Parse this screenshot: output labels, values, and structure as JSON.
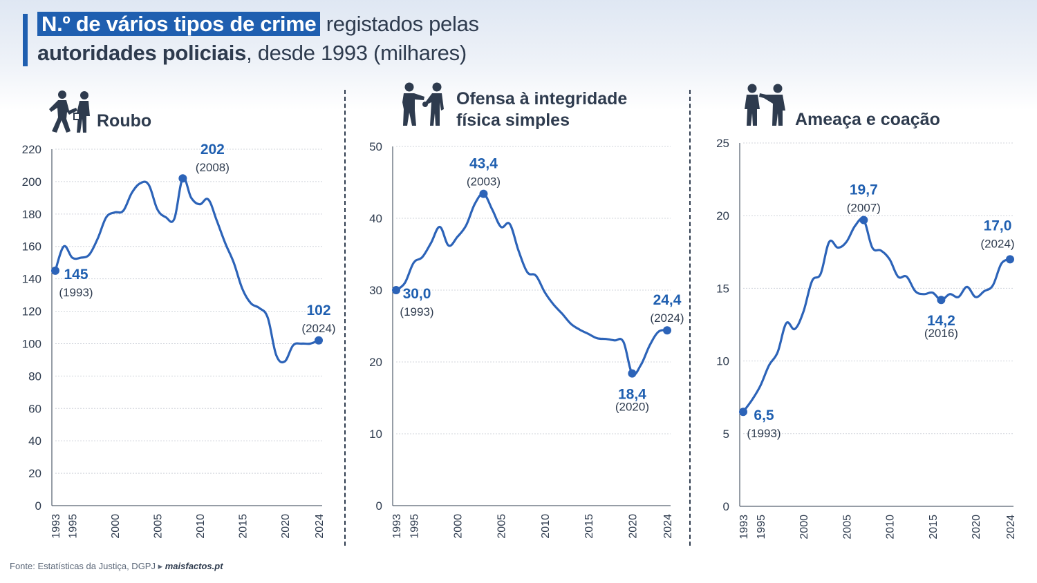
{
  "title": {
    "highlight": "N.º de vários tipos de crime",
    "part2": " registados pelas",
    "part3_bold": "autoridades policiais",
    "part4": ", desde 1993 (milhares)"
  },
  "source": {
    "text": "Fonte: Estatísticas da Justiça, DGPJ ▸ ",
    "site": "maisfactos.pt"
  },
  "colors": {
    "line": "#2c63b8",
    "label": "#1f5fb0",
    "grid": "#d0d4db",
    "axis": "#2e3b4e"
  },
  "chart_data": [
    {
      "type": "line",
      "title": "Roubo",
      "icon": "robbery-icon",
      "ylim": [
        0,
        220
      ],
      "yticks": [
        0,
        20,
        40,
        60,
        80,
        100,
        120,
        140,
        160,
        180,
        200,
        220
      ],
      "xlim": [
        1993,
        2024
      ],
      "xticks": [
        1993,
        1995,
        2000,
        2005,
        2010,
        2015,
        2020,
        2024
      ],
      "x": [
        1993,
        1994,
        1995,
        1996,
        1997,
        1998,
        1999,
        2000,
        2001,
        2002,
        2003,
        2004,
        2005,
        2006,
        2007,
        2008,
        2009,
        2010,
        2011,
        2012,
        2013,
        2014,
        2015,
        2016,
        2017,
        2018,
        2019,
        2020,
        2021,
        2022,
        2023,
        2024
      ],
      "values": [
        145,
        160,
        153,
        153,
        155,
        165,
        178,
        181,
        182,
        193,
        199,
        198,
        183,
        178,
        177,
        202,
        190,
        186,
        189,
        176,
        162,
        150,
        134,
        125,
        122,
        116,
        93,
        89,
        99,
        100,
        100,
        102
      ],
      "annotations": [
        {
          "x": 1993,
          "y": 145,
          "value": "145",
          "year": "(1993)",
          "pos": "below-right"
        },
        {
          "x": 2008,
          "y": 202,
          "value": "202",
          "year": "(2008)",
          "pos": "above-right"
        },
        {
          "x": 2024,
          "y": 102,
          "value": "102",
          "year": "(2024)",
          "pos": "above"
        }
      ]
    },
    {
      "type": "line",
      "title": "Ofensa à integridade física simples",
      "title_lines": [
        "Ofensa à integridade",
        "física simples"
      ],
      "icon": "assault-icon",
      "ylim": [
        0,
        50
      ],
      "yticks": [
        0,
        10,
        20,
        30,
        40,
        50
      ],
      "xlim": [
        1993,
        2024
      ],
      "xticks": [
        1993,
        1995,
        2000,
        2005,
        2010,
        2015,
        2020,
        2024
      ],
      "x": [
        1993,
        1994,
        1995,
        1996,
        1997,
        1998,
        1999,
        2000,
        2001,
        2002,
        2003,
        2004,
        2005,
        2006,
        2007,
        2008,
        2009,
        2010,
        2011,
        2012,
        2013,
        2014,
        2015,
        2016,
        2017,
        2018,
        2019,
        2020,
        2021,
        2022,
        2023,
        2024
      ],
      "values": [
        30.0,
        31.0,
        33.8,
        34.6,
        36.6,
        38.8,
        36.2,
        37.4,
        39.0,
        42.0,
        43.4,
        41.2,
        38.8,
        39.2,
        35.5,
        32.5,
        32.0,
        29.7,
        28.0,
        26.7,
        25.3,
        24.5,
        23.9,
        23.3,
        23.2,
        23.0,
        22.8,
        18.4,
        19.6,
        22.3,
        24.2,
        24.4
      ],
      "annotations": [
        {
          "x": 1993,
          "y": 30.0,
          "value": "30,0",
          "year": "(1993)",
          "pos": "below-right"
        },
        {
          "x": 2003,
          "y": 43.4,
          "value": "43,4",
          "year": "(2003)",
          "pos": "above"
        },
        {
          "x": 2020,
          "y": 18.4,
          "value": "18,4",
          "year": "(2020)",
          "pos": "below"
        },
        {
          "x": 2024,
          "y": 24.4,
          "value": "24,4",
          "year": "(2024)",
          "pos": "above"
        }
      ]
    },
    {
      "type": "line",
      "title": "Ameaça e coação",
      "icon": "threat-icon",
      "ylim": [
        0,
        25
      ],
      "yticks": [
        0,
        5,
        10,
        15,
        20,
        25
      ],
      "xlim": [
        1993,
        2024
      ],
      "xticks": [
        1993,
        1995,
        2000,
        2005,
        2010,
        2015,
        2020,
        2024
      ],
      "x": [
        1993,
        1994,
        1995,
        1996,
        1997,
        1998,
        1999,
        2000,
        2001,
        2002,
        2003,
        2004,
        2005,
        2006,
        2007,
        2008,
        2009,
        2010,
        2011,
        2012,
        2013,
        2014,
        2015,
        2016,
        2017,
        2018,
        2019,
        2020,
        2021,
        2022,
        2023,
        2024
      ],
      "values": [
        6.5,
        7.3,
        8.3,
        9.7,
        10.6,
        12.6,
        12.2,
        13.4,
        15.5,
        16.0,
        18.2,
        17.8,
        18.2,
        19.3,
        19.7,
        17.8,
        17.6,
        17.0,
        15.8,
        15.8,
        14.8,
        14.6,
        14.7,
        14.2,
        14.6,
        14.4,
        15.1,
        14.4,
        14.8,
        15.2,
        16.7,
        17.0
      ],
      "annotations": [
        {
          "x": 1993,
          "y": 6.5,
          "value": "6,5",
          "year": "(1993)",
          "pos": "below-right"
        },
        {
          "x": 2007,
          "y": 19.7,
          "value": "19,7",
          "year": "(2007)",
          "pos": "above"
        },
        {
          "x": 2016,
          "y": 14.2,
          "value": "14,2",
          "year": "(2016)",
          "pos": "below"
        },
        {
          "x": 2024,
          "y": 17.0,
          "value": "17,0",
          "year": "(2024)",
          "pos": "above-left"
        }
      ]
    }
  ]
}
